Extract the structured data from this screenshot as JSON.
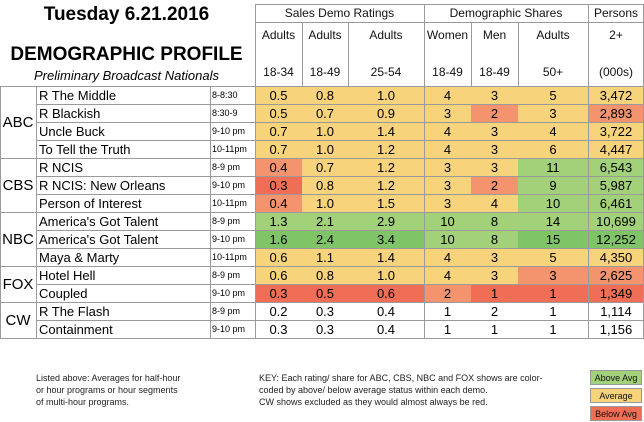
{
  "title": {
    "line1": "Tuesday 6.21.2016",
    "line2": "DEMOGRAPHIC PROFILE",
    "line3": "Preliminary Broadcast Nationals"
  },
  "header": {
    "group_sales": "Sales Demo Ratings",
    "group_shares": "Demographic Shares",
    "persons_line1": "Persons",
    "persons_line2": "2+",
    "persons_line3": "(000s)",
    "columns": [
      {
        "line1": "Adults",
        "line2": "18-34"
      },
      {
        "line1": "Adults",
        "line2": "18-49"
      },
      {
        "line1": "Adults",
        "line2": "25-54"
      },
      {
        "line1": "Women",
        "line2": "18-49"
      },
      {
        "line1": "Men",
        "line2": "18-49"
      },
      {
        "line1": "Adults",
        "line2": "50+"
      }
    ]
  },
  "colors": {
    "above": "#a3d17a",
    "above_strong": "#7fc466",
    "average": "#f7d37c",
    "average_light": "#f9e08f",
    "below": "#f3946e",
    "below_strong": "#ef6e55",
    "neutral": "#ffffff",
    "line": "#9a9a9a"
  },
  "networks": [
    "ABC",
    "CBS",
    "NBC",
    "FOX",
    "CW"
  ],
  "rows": [
    {
      "show": "R The Middle",
      "time": "8-8:30",
      "a1834": "0.5",
      "a1849": "0.8",
      "a2554": "1.0",
      "w1849": "4",
      "m1849": "3",
      "a50": "5",
      "p2": "3,472"
    },
    {
      "show": "R Blackish",
      "time": "8:30-9",
      "a1834": "0.5",
      "a1849": "0.7",
      "a2554": "0.9",
      "w1849": "3",
      "m1849": "2",
      "a50": "3",
      "p2": "2,893"
    },
    {
      "show": "Uncle Buck",
      "time": "9-10 pm",
      "a1834": "0.7",
      "a1849": "1.0",
      "a2554": "1.4",
      "w1849": "4",
      "m1849": "3",
      "a50": "4",
      "p2": "3,722"
    },
    {
      "show": "To Tell the Truth",
      "time": "10-11pm",
      "a1834": "0.7",
      "a1849": "1.0",
      "a2554": "1.2",
      "w1849": "4",
      "m1849": "3",
      "a50": "6",
      "p2": "4,447"
    },
    {
      "show": "R NCIS",
      "time": "8-9 pm",
      "a1834": "0.4",
      "a1849": "0.7",
      "a2554": "1.2",
      "w1849": "3",
      "m1849": "3",
      "a50": "11",
      "p2": "6,543"
    },
    {
      "show": "R NCIS: New Orleans",
      "time": "9-10 pm",
      "a1834": "0.3",
      "a1849": "0.8",
      "a2554": "1.2",
      "w1849": "3",
      "m1849": "2",
      "a50": "9",
      "p2": "5,987"
    },
    {
      "show": "Person of Interest",
      "time": "10-11pm",
      "a1834": "0.4",
      "a1849": "1.0",
      "a2554": "1.5",
      "w1849": "3",
      "m1849": "4",
      "a50": "10",
      "p2": "6,461"
    },
    {
      "show": "America's Got Talent",
      "time": "8-9 pm",
      "a1834": "1.3",
      "a1849": "2.1",
      "a2554": "2.9",
      "w1849": "10",
      "m1849": "8",
      "a50": "14",
      "p2": "10,699"
    },
    {
      "show": "America's Got Talent",
      "time": "9-10 pm",
      "a1834": "1.6",
      "a1849": "2.4",
      "a2554": "3.4",
      "w1849": "10",
      "m1849": "8",
      "a50": "15",
      "p2": "12,252"
    },
    {
      "show": "Maya & Marty",
      "time": "10-11pm",
      "a1834": "0.6",
      "a1849": "1.1",
      "a2554": "1.4",
      "w1849": "4",
      "m1849": "3",
      "a50": "5",
      "p2": "4,350"
    },
    {
      "show": "Hotel Hell",
      "time": "8-9 pm",
      "a1834": "0.6",
      "a1849": "0.8",
      "a2554": "1.0",
      "w1849": "4",
      "m1849": "3",
      "a50": "3",
      "p2": "2,625"
    },
    {
      "show": "Coupled",
      "time": "9-10 pm",
      "a1834": "0.3",
      "a1849": "0.5",
      "a2554": "0.6",
      "w1849": "2",
      "m1849": "1",
      "a50": "1",
      "p2": "1,349"
    },
    {
      "show": "R The Flash",
      "time": "8-9 pm",
      "a1834": "0.2",
      "a1849": "0.3",
      "a2554": "0.4",
      "w1849": "1",
      "m1849": "2",
      "a50": "1",
      "p2": "1,114"
    },
    {
      "show": "Containment",
      "time": "9-10 pm",
      "a1834": "0.3",
      "a1849": "0.3",
      "a2554": "0.4",
      "w1849": "1",
      "m1849": "1",
      "a50": "1",
      "p2": "1,156"
    }
  ],
  "notes": {
    "line1": "Listed above: Averages for half-hour",
    "line2": "or hour programs or hour segments",
    "line3": "of multi-hour programs."
  },
  "key": {
    "line1": "KEY: Each rating/ share for ABC, CBS, NBC and FOX shows are color-",
    "line2": "coded by above/ below average status within each demo.",
    "line3": "CW shows excluded as they would almost always be red."
  },
  "legend": {
    "above": "Above Avg",
    "average": "Average",
    "below": "Below Avg"
  }
}
